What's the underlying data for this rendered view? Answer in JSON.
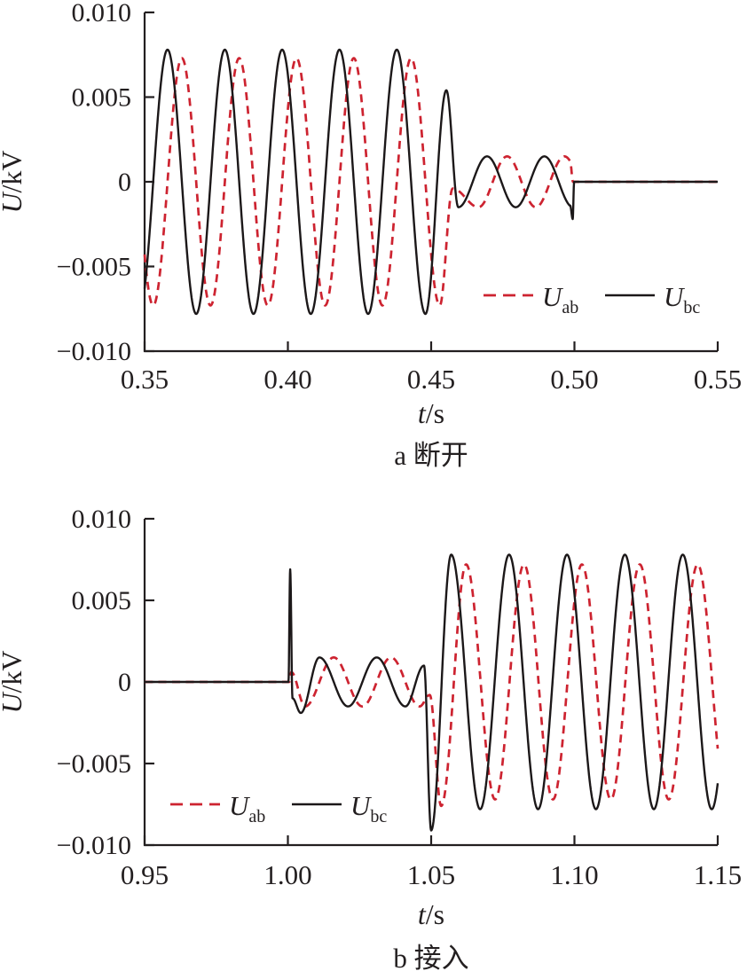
{
  "figure": {
    "background": "#ffffff",
    "axis_color": "#231f20",
    "text_color": "#231f20"
  },
  "chart_data": [
    {
      "type": "line",
      "id": "a",
      "caption": "a 断开",
      "xlabel": {
        "var": "t",
        "unit": "/s"
      },
      "ylabel": {
        "var": "U",
        "unit": "/kV"
      },
      "xlim": [
        0.35,
        0.55
      ],
      "ylim": [
        -0.01,
        0.01
      ],
      "grid": false,
      "frequency_hz": 50,
      "xticks": [
        {
          "v": 0.35,
          "label": "0.35"
        },
        {
          "v": 0.4,
          "label": "0.40"
        },
        {
          "v": 0.45,
          "label": "0.45"
        },
        {
          "v": 0.5,
          "label": "0.50"
        },
        {
          "v": 0.55,
          "label": "0.55"
        }
      ],
      "yticks": [
        {
          "v": 0.01,
          "label": "0.010"
        },
        {
          "v": 0.005,
          "label": "0.005"
        },
        {
          "v": 0,
          "label": "0"
        },
        {
          "v": -0.005,
          "label": "−0.005"
        },
        {
          "v": -0.01,
          "label": "−0.010"
        }
      ],
      "legend": {
        "position": "inside-right-lower",
        "items": [
          {
            "label": "U",
            "sub": "ab",
            "color": "#cd2330",
            "dashed": true
          },
          {
            "label": "U",
            "sub": "bc",
            "color": "#1c1819",
            "dashed": false
          }
        ]
      },
      "series": [
        {
          "name": "U_ab",
          "color": "#cd2330",
          "dash": [
            9,
            6.5
          ],
          "width": 2.7,
          "segments": [
            {
              "kind": "cos",
              "t0": 0.35,
              "t1": 0.453,
              "amp": 0.0073,
              "freq": 50,
              "t_peak": 0.363
            },
            {
              "kind": "ramp",
              "t0": 0.453,
              "t1": 0.4575,
              "y0": -0.0073,
              "y1": -0.0004
            },
            {
              "kind": "ramp",
              "t0": 0.4575,
              "t1": 0.4665,
              "y0": -0.0004,
              "y1": -0.0015
            },
            {
              "kind": "cos",
              "t0": 0.4665,
              "t1": 0.4985,
              "amp": 0.0015,
              "freq": 50,
              "t_peak": 0.4765
            },
            {
              "kind": "ramp",
              "t0": 0.4985,
              "t1": 0.4995,
              "y0": 0.0012,
              "y1": 0
            },
            {
              "kind": "flat",
              "t0": 0.4995,
              "t1": 0.55,
              "y": 0
            }
          ]
        },
        {
          "name": "U_bc",
          "color": "#1c1819",
          "dash": null,
          "width": 2.4,
          "segments": [
            {
              "kind": "cos",
              "t0": 0.35,
              "t1": 0.448,
              "amp": 0.0078,
              "freq": 50,
              "t_peak": 0.358
            },
            {
              "kind": "ramp",
              "t0": 0.448,
              "t1": 0.4553,
              "y0": -0.0078,
              "y1": 0.0054
            },
            {
              "kind": "ramp",
              "t0": 0.4553,
              "t1": 0.4595,
              "y0": 0.0054,
              "y1": -0.0015
            },
            {
              "kind": "cos",
              "t0": 0.4595,
              "t1": 0.4985,
              "amp": 0.0015,
              "freq": 50,
              "t_peak": 0.4695
            },
            {
              "kind": "ramp",
              "t0": 0.4985,
              "t1": 0.4994,
              "y0": -0.0014,
              "y1": -0.0022
            },
            {
              "kind": "ramp",
              "t0": 0.4994,
              "t1": 0.4999,
              "y0": -0.0022,
              "y1": 0
            },
            {
              "kind": "flat",
              "t0": 0.4999,
              "t1": 0.55,
              "y": 0
            }
          ]
        }
      ]
    },
    {
      "type": "line",
      "id": "b",
      "caption": "b 接入",
      "xlabel": {
        "var": "t",
        "unit": "/s"
      },
      "ylabel": {
        "var": "U",
        "unit": "/kV"
      },
      "xlim": [
        0.95,
        1.15
      ],
      "ylim": [
        -0.01,
        0.01
      ],
      "grid": false,
      "frequency_hz": 50,
      "xticks": [
        {
          "v": 0.95,
          "label": "0.95"
        },
        {
          "v": 1.0,
          "label": "1.00"
        },
        {
          "v": 1.05,
          "label": "1.05"
        },
        {
          "v": 1.1,
          "label": "1.10"
        },
        {
          "v": 1.15,
          "label": "1.15"
        }
      ],
      "yticks": [
        {
          "v": 0.01,
          "label": "0.010"
        },
        {
          "v": 0.005,
          "label": "0.005"
        },
        {
          "v": 0,
          "label": "0"
        },
        {
          "v": -0.005,
          "label": "−0.005"
        },
        {
          "v": -0.01,
          "label": "−0.010"
        }
      ],
      "legend": {
        "position": "inside-left-lower",
        "items": [
          {
            "label": "U",
            "sub": "ab",
            "color": "#cd2330",
            "dashed": true
          },
          {
            "label": "U",
            "sub": "bc",
            "color": "#1c1819",
            "dashed": false
          }
        ]
      },
      "series": [
        {
          "name": "U_ab",
          "color": "#cd2330",
          "dash": [
            9,
            6.5
          ],
          "width": 2.7,
          "segments": [
            {
              "kind": "flat",
              "t0": 0.95,
              "t1": 1.0005,
              "y": 0
            },
            {
              "kind": "ramp",
              "t0": 1.0005,
              "t1": 1.0012,
              "y0": 0,
              "y1": 0.0006
            },
            {
              "kind": "ramp",
              "t0": 1.0012,
              "t1": 1.006,
              "y0": 0.0006,
              "y1": -0.0015
            },
            {
              "kind": "cos",
              "t0": 1.006,
              "t1": 1.046,
              "amp": 0.0015,
              "freq": 50,
              "t_peak": 1.016
            },
            {
              "kind": "ramp",
              "t0": 1.046,
              "t1": 1.0495,
              "y0": -0.0015,
              "y1": -0.0008
            },
            {
              "kind": "ramp",
              "t0": 1.0495,
              "t1": 1.0535,
              "y0": -0.0008,
              "y1": -0.0076
            },
            {
              "kind": "ramp",
              "t0": 1.0535,
              "t1": 1.0622,
              "y0": -0.0076,
              "y1": 0.0072
            },
            {
              "kind": "cos",
              "t0": 1.0622,
              "t1": 1.15,
              "amp": 0.0072,
              "freq": 49.5,
              "t_peak": 1.0622
            }
          ]
        },
        {
          "name": "U_bc",
          "color": "#1c1819",
          "dash": null,
          "width": 2.4,
          "segments": [
            {
              "kind": "flat",
              "t0": 0.95,
              "t1": 1.0002,
              "y": 0
            },
            {
              "kind": "ramp",
              "t0": 1.0002,
              "t1": 1.0008,
              "y0": 0,
              "y1": 0.0069
            },
            {
              "kind": "ramp",
              "t0": 1.0008,
              "t1": 1.0016,
              "y0": 0.0069,
              "y1": -0.001
            },
            {
              "kind": "ramp",
              "t0": 1.0016,
              "t1": 1.0045,
              "y0": -0.001,
              "y1": -0.0019
            },
            {
              "kind": "ramp",
              "t0": 1.0045,
              "t1": 1.011,
              "y0": -0.0019,
              "y1": 0.0015
            },
            {
              "kind": "cos",
              "t0": 1.011,
              "t1": 1.041,
              "amp": 0.0015,
              "freq": 50,
              "t_peak": 1.011
            },
            {
              "kind": "ramp",
              "t0": 1.041,
              "t1": 1.0475,
              "y0": -0.0015,
              "y1": 0.001
            },
            {
              "kind": "ramp",
              "t0": 1.0475,
              "t1": 1.05,
              "y0": 0.001,
              "y1": -0.0091
            },
            {
              "kind": "ramp",
              "t0": 1.05,
              "t1": 1.057,
              "y0": -0.0091,
              "y1": 0.0078
            },
            {
              "kind": "cos",
              "t0": 1.057,
              "t1": 1.15,
              "amp": 0.0078,
              "freq": 49.5,
              "t_peak": 1.057
            }
          ]
        }
      ]
    }
  ]
}
